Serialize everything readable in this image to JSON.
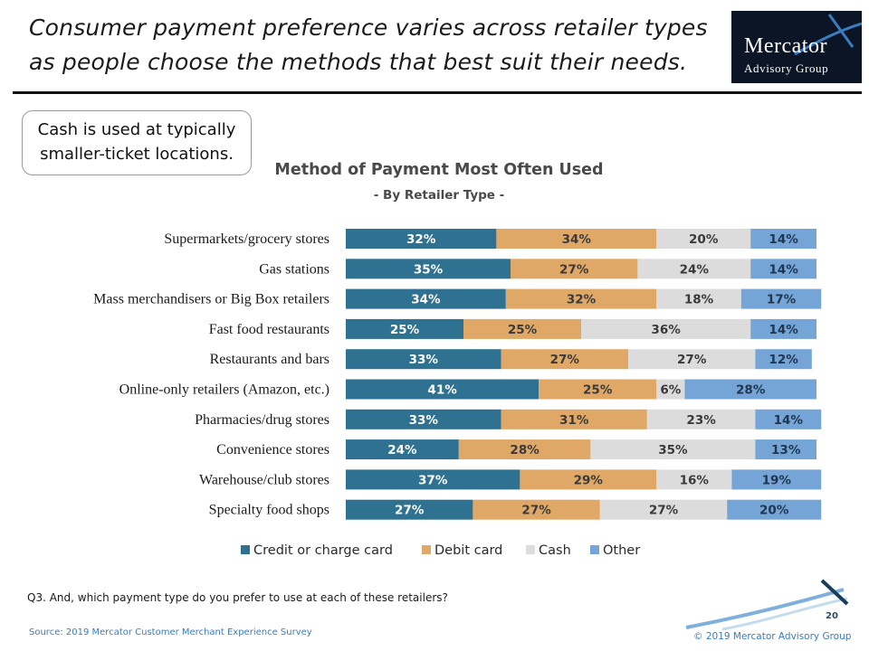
{
  "slide": {
    "headline": "Consumer payment preference varies across retailer types as people choose the methods that best suit their needs.",
    "logo": {
      "line1": "Mercator",
      "line2": "Advisory Group"
    },
    "callout": "Cash is used at typically smaller-ticket locations.",
    "question": "Q3. And, which payment type do you prefer to use at each of these retailers?",
    "source": "Source: 2019 Mercator Customer Merchant Experience Survey",
    "copyright": "© 2019 Mercator Advisory Group",
    "page_number": "20"
  },
  "chart_data": {
    "type": "bar",
    "orientation": "horizontal",
    "stacked": true,
    "title": "Method of Payment Most Often Used",
    "subtitle": "- By Retailer Type -",
    "unit": "%",
    "categories": [
      "Supermarkets/grocery stores",
      "Gas stations",
      "Mass merchandisers or Big Box retailers",
      "Fast food restaurants",
      "Restaurants and bars",
      "Online-only retailers (Amazon, etc.)",
      "Pharmacies/drug stores",
      "Convenience stores",
      "Warehouse/club stores",
      "Specialty food shops"
    ],
    "series": [
      {
        "name": "Credit or charge card",
        "color": "#2e7191",
        "label_color": "#ffffff",
        "values": [
          32,
          35,
          34,
          25,
          33,
          41,
          33,
          24,
          37,
          27
        ]
      },
      {
        "name": "Debit card",
        "color": "#e0a866",
        "label_color": "#3a3a3a",
        "values": [
          34,
          27,
          32,
          25,
          27,
          25,
          31,
          28,
          29,
          27
        ]
      },
      {
        "name": "Cash",
        "color": "#dcdcdc",
        "label_color": "#3a3a3a",
        "values": [
          20,
          24,
          18,
          36,
          27,
          6,
          23,
          35,
          16,
          27
        ]
      },
      {
        "name": "Other",
        "color": "#74a5d6",
        "label_color": "#1f3550",
        "values": [
          14,
          14,
          17,
          14,
          12,
          28,
          14,
          13,
          19,
          20
        ]
      }
    ],
    "xlim": [
      0,
      100
    ],
    "gridlines": false,
    "legend_position": "bottom"
  }
}
